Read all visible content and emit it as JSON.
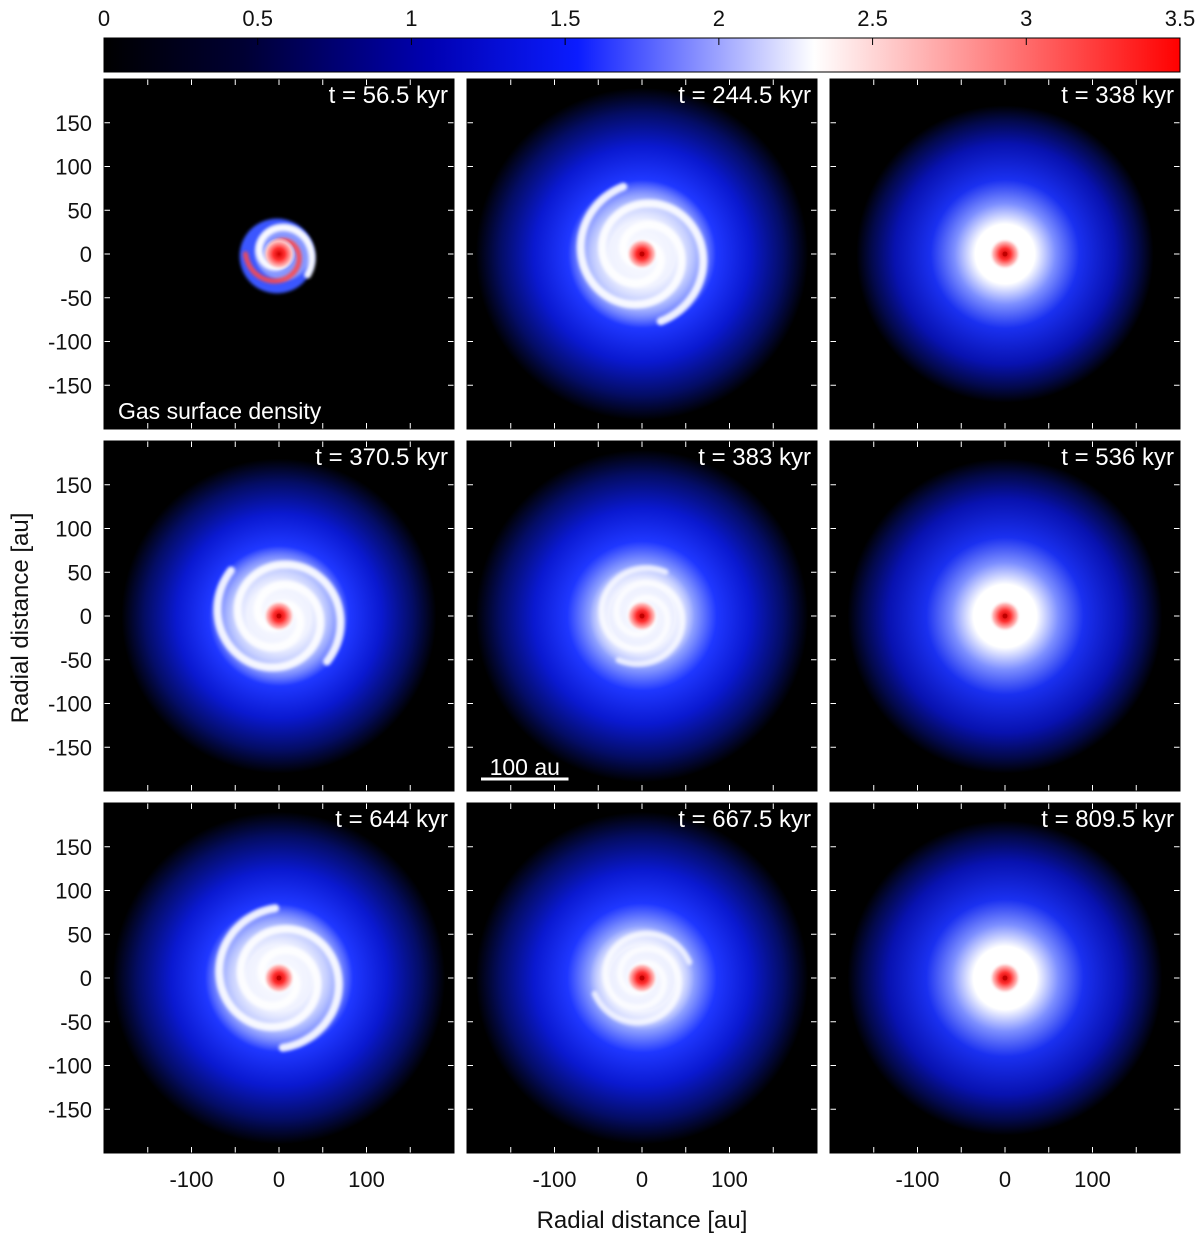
{
  "chart_data": {
    "type": "heatmap",
    "colorbar": {
      "ticks": [
        "0",
        "0.5",
        "1",
        "1.5",
        "2",
        "2.5",
        "3",
        "3.5"
      ],
      "range": [
        0,
        3.5
      ],
      "colors": {
        "low": "#000000",
        "mid": "#0000ff",
        "white": "#ffffff",
        "high": "#ff0000"
      },
      "white_at": 2.3
    },
    "xlabel": "Radial distance [au]",
    "ylabel": "Radial distance [au]",
    "xticks": [
      "-100",
      "0",
      "100"
    ],
    "yticks": [
      "150",
      "100",
      "50",
      "0",
      "-50",
      "-100",
      "-150"
    ],
    "xlim": [
      -200,
      200
    ],
    "ylim": [
      -200,
      200
    ],
    "grid": false,
    "annotation": "Gas surface density",
    "scale_bar": {
      "label": "100 au",
      "length_au": 100
    },
    "panels": [
      {
        "time": "t = 56.5 kyr",
        "disk_radius_au": 45,
        "spiral": "strong",
        "disk_edge": "sharp"
      },
      {
        "time": "t = 244.5 kyr",
        "disk_radius_au": 190,
        "spiral": "strong",
        "disk_edge": "diffuse"
      },
      {
        "time": "t = 338 kyr",
        "disk_radius_au": 170,
        "spiral": "none",
        "disk_edge": "diffuse"
      },
      {
        "time": "t = 370.5 kyr",
        "disk_radius_au": 180,
        "spiral": "strong",
        "disk_edge": "diffuse"
      },
      {
        "time": "t = 383 kyr",
        "disk_radius_au": 190,
        "spiral": "weak",
        "disk_edge": "diffuse"
      },
      {
        "time": "t = 536 kyr",
        "disk_radius_au": 180,
        "spiral": "none",
        "disk_edge": "diffuse"
      },
      {
        "time": "t = 644 kyr",
        "disk_radius_au": 190,
        "spiral": "strong",
        "disk_edge": "diffuse"
      },
      {
        "time": "t = 667.5 kyr",
        "disk_radius_au": 190,
        "spiral": "weak",
        "disk_edge": "diffuse"
      },
      {
        "time": "t = 809.5 kyr",
        "disk_radius_au": 180,
        "spiral": "none",
        "disk_edge": "diffuse"
      }
    ]
  }
}
